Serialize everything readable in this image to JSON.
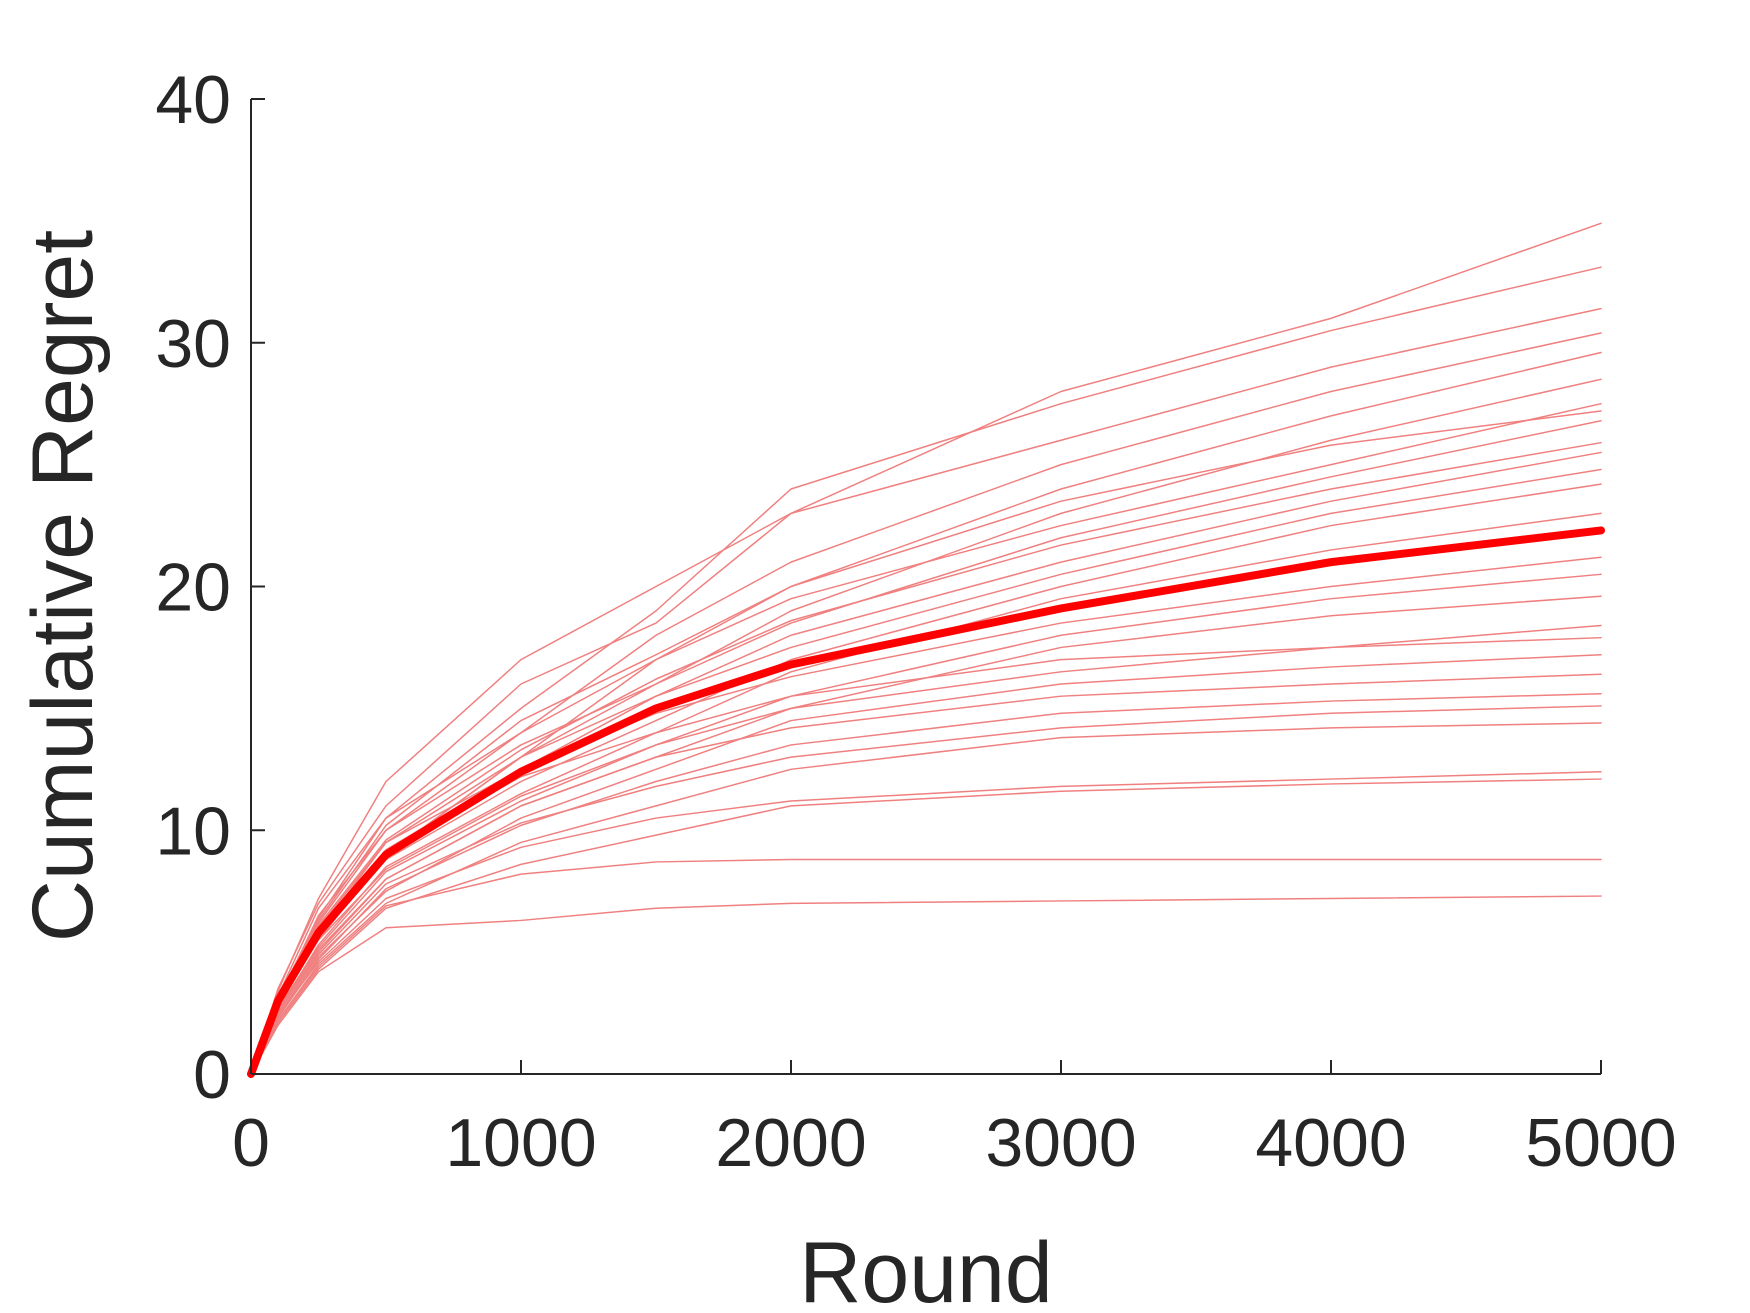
{
  "chart_data": {
    "type": "line",
    "xlabel": "Round",
    "ylabel": "Cumulative Regret",
    "x": [
      0,
      100,
      250,
      500,
      1000,
      1500,
      2000,
      3000,
      4000,
      5000
    ],
    "xlim": [
      0,
      5000
    ],
    "xticks": [
      0,
      1000,
      2000,
      3000,
      4000,
      5000
    ],
    "ylim": [
      0,
      40
    ],
    "yticks": [
      0,
      10,
      20,
      30,
      40
    ],
    "grid": false,
    "series": [
      {
        "color": "#f08080",
        "width": 1.5,
        "values": [
          0,
          3.5,
          7,
          11,
          16,
          18.5,
          23,
          28,
          31,
          34.9
        ]
      },
      {
        "color": "#f08080",
        "width": 1.5,
        "values": [
          0,
          3.2,
          6.8,
          10.5,
          15,
          19,
          24,
          27.5,
          30.5,
          33.1
        ]
      },
      {
        "color": "#f08080",
        "width": 1.5,
        "values": [
          0,
          3.4,
          7.2,
          12,
          17,
          20,
          23,
          26,
          29,
          31.4
        ]
      },
      {
        "color": "#f08080",
        "width": 1.5,
        "values": [
          0,
          3,
          6.5,
          10,
          14,
          18,
          21,
          25,
          28,
          30.4
        ]
      },
      {
        "color": "#f08080",
        "width": 1.5,
        "values": [
          0,
          3.3,
          6,
          9.5,
          13,
          17,
          20,
          24,
          27,
          29.6
        ]
      },
      {
        "color": "#f08080",
        "width": 1.5,
        "values": [
          0,
          2.8,
          6.2,
          10,
          13.5,
          16,
          19,
          23,
          26,
          28.5
        ]
      },
      {
        "color": "#f08080",
        "width": 1.5,
        "values": [
          0,
          3.1,
          6.4,
          10.5,
          14,
          17,
          19.5,
          22.5,
          25,
          27.5
        ]
      },
      {
        "color": "#f08080",
        "width": 1.5,
        "values": [
          0,
          3,
          5.5,
          9,
          13,
          16,
          18.5,
          22,
          24.5,
          26.8
        ]
      },
      {
        "color": "#f08080",
        "width": 1.5,
        "values": [
          0,
          2.7,
          5.8,
          9.5,
          12.5,
          15.5,
          18,
          21,
          23.5,
          25.5
        ]
      },
      {
        "color": "#f08080",
        "width": 1.5,
        "values": [
          0,
          3.2,
          6,
          9,
          13,
          15.5,
          17.5,
          20.5,
          23,
          24.8
        ]
      },
      {
        "color": "#f08080",
        "width": 1.5,
        "values": [
          0,
          2.9,
          5.6,
          8.8,
          12,
          14.5,
          17,
          20,
          22.5,
          24.2
        ]
      },
      {
        "color": "#f08080",
        "width": 1.5,
        "values": [
          0,
          2.6,
          5.3,
          8.5,
          11.5,
          14,
          16.5,
          19.5,
          21.5,
          23
        ]
      },
      {
        "color": "#f08080",
        "width": 1.5,
        "values": [
          0,
          3,
          5.9,
          9.2,
          12.5,
          14.8,
          16.3,
          18.5,
          20,
          21.2
        ]
      },
      {
        "color": "#f08080",
        "width": 1.5,
        "values": [
          0,
          2.8,
          5.5,
          8.4,
          11.4,
          13.5,
          15.5,
          18,
          19.5,
          20.5
        ]
      },
      {
        "color": "#f08080",
        "width": 1.5,
        "values": [
          0,
          2.5,
          5,
          8,
          11,
          13,
          15,
          17.5,
          18.8,
          19.6
        ]
      },
      {
        "color": "#f08080",
        "width": 1.5,
        "values": [
          0,
          2.7,
          5.2,
          8.3,
          11.2,
          13.5,
          15,
          16.5,
          17.5,
          18.4
        ]
      },
      {
        "color": "#f08080",
        "width": 1.5,
        "values": [
          0,
          2.4,
          4.8,
          7.5,
          10.5,
          12.5,
          14.5,
          16,
          16.7,
          17.2
        ]
      },
      {
        "color": "#f08080",
        "width": 1.5,
        "values": [
          0,
          2.6,
          5.1,
          8,
          11,
          13,
          14.2,
          15.5,
          16,
          16.4
        ]
      },
      {
        "color": "#f08080",
        "width": 1.5,
        "values": [
          0,
          2.3,
          4.7,
          7.6,
          10.2,
          12,
          13.5,
          14.8,
          15.3,
          15.6
        ]
      },
      {
        "color": "#f08080",
        "width": 1.5,
        "values": [
          0,
          2.5,
          4.9,
          7.8,
          10.3,
          11.8,
          13,
          14.2,
          14.8,
          15.1
        ]
      },
      {
        "color": "#f08080",
        "width": 1.5,
        "values": [
          0,
          2.2,
          4.5,
          7,
          9.5,
          11,
          12.5,
          13.8,
          14.2,
          14.4
        ]
      },
      {
        "color": "#f08080",
        "width": 1.5,
        "values": [
          0,
          2.4,
          4.6,
          7.2,
          9.3,
          10.5,
          11.2,
          11.8,
          12.1,
          12.4
        ]
      },
      {
        "color": "#f08080",
        "width": 1.5,
        "values": [
          0,
          2.1,
          4.3,
          6.8,
          8.6,
          9.8,
          11,
          11.6,
          11.9,
          12.1
        ]
      },
      {
        "color": "#f08080",
        "width": 1.5,
        "values": [
          0,
          2.2,
          4.4,
          6.9,
          8.2,
          8.7,
          8.8,
          8.8,
          8.8,
          8.8
        ]
      },
      {
        "color": "#f08080",
        "width": 1.5,
        "values": [
          0,
          2,
          4.2,
          6,
          6.3,
          6.8,
          7,
          7.1,
          7.2,
          7.3
        ]
      },
      {
        "color": "#f08080",
        "width": 1.5,
        "values": [
          0,
          2.9,
          5.7,
          9.1,
          12.2,
          14,
          15.5,
          17,
          17.5,
          17.9
        ]
      },
      {
        "color": "#f08080",
        "width": 1.5,
        "values": [
          0,
          3.1,
          6.1,
          9.6,
          13.3,
          16.2,
          18.6,
          21.7,
          24,
          25.9
        ]
      },
      {
        "color": "#f08080",
        "width": 1.5,
        "values": [
          0,
          3,
          6.3,
          10.2,
          14.5,
          17.2,
          20,
          23.5,
          25.8,
          27.2
        ]
      },
      {
        "color": "#ff0000",
        "width": 8,
        "values": [
          0,
          3,
          5.8,
          9,
          12.4,
          15,
          16.8,
          19.1,
          21,
          22.3
        ]
      }
    ]
  }
}
